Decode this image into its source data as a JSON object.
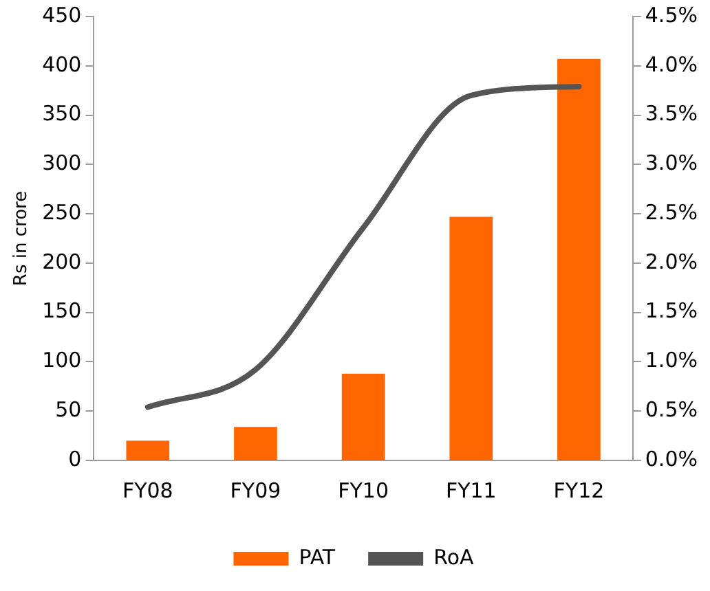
{
  "chart_data": {
    "type": "bar",
    "ylabel": "Rs in crore",
    "categories": [
      "FY08",
      "FY09",
      "FY10",
      "FY11",
      "FY12"
    ],
    "series": [
      {
        "name": "PAT",
        "color": "#ff6600",
        "values": [
          20,
          34,
          88,
          247,
          407
        ]
      },
      {
        "name": "RoA",
        "type": "line",
        "axis": "y2",
        "color": "#555555",
        "values": [
          0.54,
          0.92,
          2.36,
          3.7,
          3.79
        ]
      }
    ],
    "ylim": [
      0,
      450
    ],
    "yticks": [
      0,
      50,
      100,
      150,
      200,
      250,
      300,
      350,
      400,
      450
    ],
    "y2lim": [
      0,
      4.5
    ],
    "y2ticks": [
      {
        "value": 0,
        "label": "0.0%"
      },
      {
        "value": 0.5,
        "label": "0.5%"
      },
      {
        "value": 1,
        "label": "1.0%"
      },
      {
        "value": 1.5,
        "label": "1.5%"
      },
      {
        "value": 2,
        "label": "2.0%"
      },
      {
        "value": 2.5,
        "label": "2.5%"
      },
      {
        "value": 3,
        "label": "3.0%"
      },
      {
        "value": 3.5,
        "label": "3.5%"
      },
      {
        "value": 4,
        "label": "4.0%"
      },
      {
        "value": 4.5,
        "label": "4.5%"
      }
    ],
    "grid": false,
    "legend": "bottom",
    "marker": "none"
  }
}
